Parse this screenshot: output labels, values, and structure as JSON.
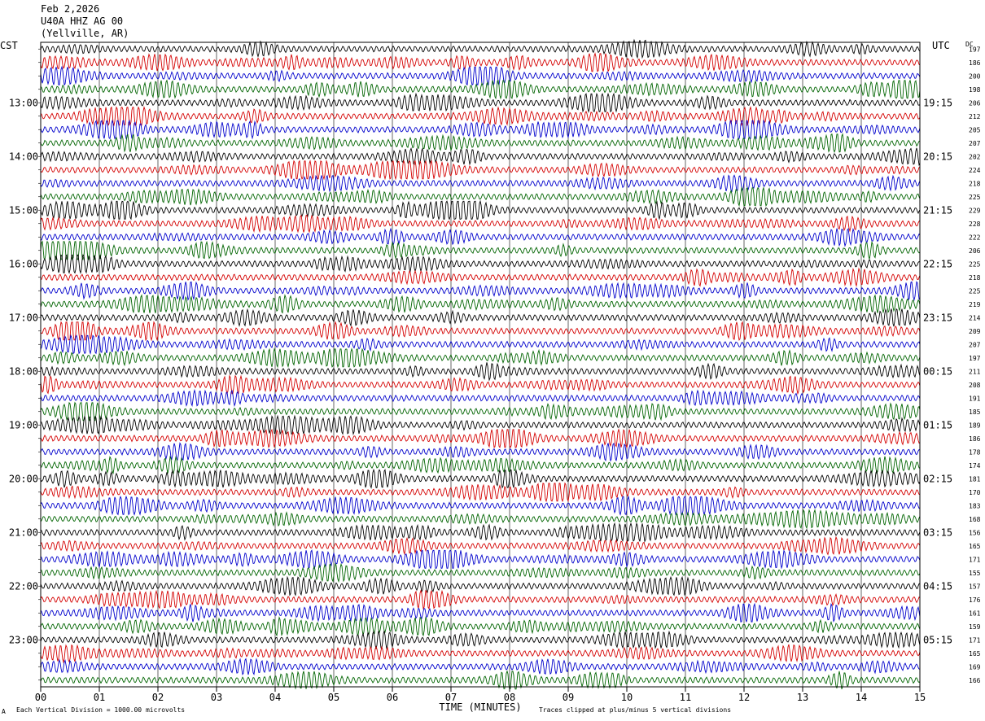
{
  "header": {
    "date": "Feb 2,2026",
    "station": "U40A HHZ AG 00",
    "location": "(Yellville, AR)"
  },
  "labels": {
    "left_tz": "CST",
    "right_tz": "UTC",
    "dc_header": "DC",
    "footer_scale": "Each Vertical Division = 1000.00 microvolts",
    "footer_clip": "Traces clipped at plus/minus 5 vertical divisions",
    "footer_mark": "A"
  },
  "colors": {
    "trace_cycle": [
      "#000000",
      "#d40000",
      "#0000cc",
      "#006400"
    ],
    "grid": "#000000",
    "background": "#ffffff"
  },
  "chart_data": {
    "type": "line",
    "title": "Feb 2,2026",
    "xlabel": "TIME (MINUTES)",
    "ylabel": "",
    "xlim": [
      0,
      15
    ],
    "x_ticks": [
      "00",
      "01",
      "02",
      "03",
      "04",
      "05",
      "06",
      "07",
      "08",
      "09",
      "10",
      "11",
      "12",
      "13",
      "14",
      "15"
    ],
    "trace_count": 48,
    "traces_per_hour": 4,
    "left_time_labels": [
      "13:00",
      "14:00",
      "15:00",
      "16:00",
      "17:00",
      "18:00",
      "19:00",
      "20:00",
      "21:00",
      "22:00",
      "23:00"
    ],
    "right_time_labels": [
      "19:15",
      "20:15",
      "21:15",
      "22:15",
      "23:15",
      "00:15",
      "01:15",
      "02:15",
      "03:15",
      "04:15",
      "05:15"
    ],
    "dc_offsets": [
      197,
      186,
      200,
      198,
      206,
      212,
      205,
      207,
      202,
      224,
      218,
      225,
      229,
      228,
      222,
      206,
      225,
      218,
      225,
      219,
      214,
      209,
      207,
      197,
      211,
      208,
      191,
      185,
      189,
      186,
      178,
      174,
      181,
      170,
      183,
      168,
      156,
      165,
      171,
      155,
      157,
      176,
      161,
      159,
      171,
      165,
      169,
      166
    ]
  }
}
